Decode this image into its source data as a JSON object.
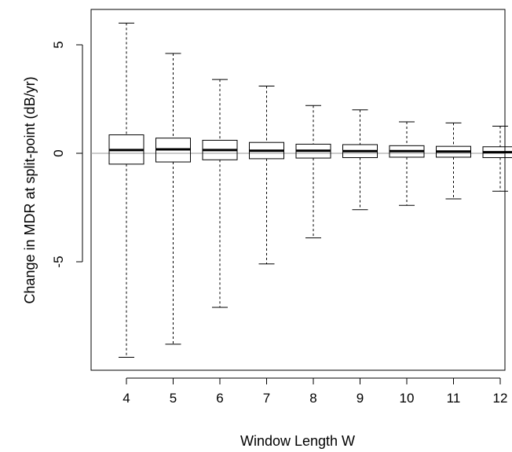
{
  "chart_data": {
    "type": "boxplot",
    "title": "",
    "xlabel": "Window Length W",
    "ylabel": "Change in MDR at split-point (dB/yr)",
    "ylim": [
      -10.0,
      6.8
    ],
    "yticks": [
      -5,
      0,
      5
    ],
    "reference_line_y": 0,
    "grid": false,
    "categories": [
      "4",
      "5",
      "6",
      "7",
      "8",
      "9",
      "10",
      "11",
      "12"
    ],
    "boxes": [
      {
        "min": -9.4,
        "q1": -0.5,
        "median": 0.15,
        "q3": 0.85,
        "max": 6.0
      },
      {
        "min": -8.8,
        "q1": -0.4,
        "median": 0.18,
        "q3": 0.7,
        "max": 4.6
      },
      {
        "min": -7.1,
        "q1": -0.3,
        "median": 0.15,
        "q3": 0.6,
        "max": 3.4
      },
      {
        "min": -5.1,
        "q1": -0.25,
        "median": 0.12,
        "q3": 0.5,
        "max": 3.1
      },
      {
        "min": -3.9,
        "q1": -0.22,
        "median": 0.12,
        "q3": 0.42,
        "max": 2.2
      },
      {
        "min": -2.6,
        "q1": -0.2,
        "median": 0.1,
        "q3": 0.4,
        "max": 2.0
      },
      {
        "min": -2.4,
        "q1": -0.18,
        "median": 0.1,
        "q3": 0.35,
        "max": 1.45
      },
      {
        "min": -2.1,
        "q1": -0.18,
        "median": 0.08,
        "q3": 0.32,
        "max": 1.4
      },
      {
        "min": -1.75,
        "q1": -0.2,
        "median": 0.05,
        "q3": 0.3,
        "max": 1.25
      }
    ]
  }
}
